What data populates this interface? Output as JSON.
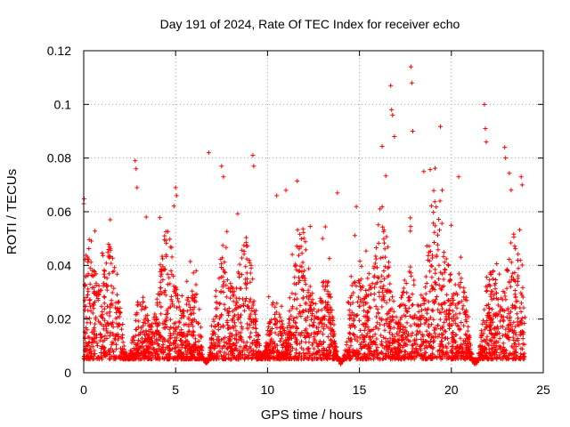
{
  "chart_data": {
    "type": "scatter",
    "title": "Day 191 of 2024, Rate Of TEC Index for receiver echo",
    "xlabel": "GPS time / hours",
    "ylabel": "ROTI / TECUs",
    "xlim": [
      0,
      25
    ],
    "ylim": [
      0,
      0.12
    ],
    "x_ticks": [
      "0",
      "5",
      "10",
      "15",
      "20",
      "25"
    ],
    "y_ticks": [
      "0",
      "0.02",
      "0.04",
      "0.06",
      "0.08",
      "0.1",
      "0.12"
    ],
    "grid": true,
    "marker": "plus",
    "color": "#ff0000",
    "x_range_of_data": [
      0,
      24
    ],
    "typical_values": [
      0.005,
      0.03
    ],
    "spikes": [
      {
        "x": 0.0,
        "y": 0.063
      },
      {
        "x": 2.8,
        "y": 0.079
      },
      {
        "x": 2.85,
        "y": 0.076
      },
      {
        "x": 2.9,
        "y": 0.069
      },
      {
        "x": 3.4,
        "y": 0.058
      },
      {
        "x": 5.0,
        "y": 0.069
      },
      {
        "x": 5.05,
        "y": 0.066
      },
      {
        "x": 6.8,
        "y": 0.082
      },
      {
        "x": 7.5,
        "y": 0.077
      },
      {
        "x": 7.6,
        "y": 0.073
      },
      {
        "x": 9.2,
        "y": 0.081
      },
      {
        "x": 9.25,
        "y": 0.077
      },
      {
        "x": 10.5,
        "y": 0.066
      },
      {
        "x": 11.0,
        "y": 0.068
      },
      {
        "x": 13.8,
        "y": 0.067
      },
      {
        "x": 16.7,
        "y": 0.107
      },
      {
        "x": 16.75,
        "y": 0.098
      },
      {
        "x": 16.8,
        "y": 0.096
      },
      {
        "x": 16.9,
        "y": 0.088
      },
      {
        "x": 17.8,
        "y": 0.114
      },
      {
        "x": 17.85,
        "y": 0.108
      },
      {
        "x": 17.9,
        "y": 0.09
      },
      {
        "x": 18.5,
        "y": 0.075
      },
      {
        "x": 19.5,
        "y": 0.068
      },
      {
        "x": 20.4,
        "y": 0.073
      },
      {
        "x": 21.8,
        "y": 0.1
      },
      {
        "x": 21.85,
        "y": 0.091
      },
      {
        "x": 21.9,
        "y": 0.086
      },
      {
        "x": 22.9,
        "y": 0.084
      },
      {
        "x": 22.95,
        "y": 0.08
      },
      {
        "x": 23.8,
        "y": 0.073
      },
      {
        "x": 23.85,
        "y": 0.07
      }
    ]
  }
}
